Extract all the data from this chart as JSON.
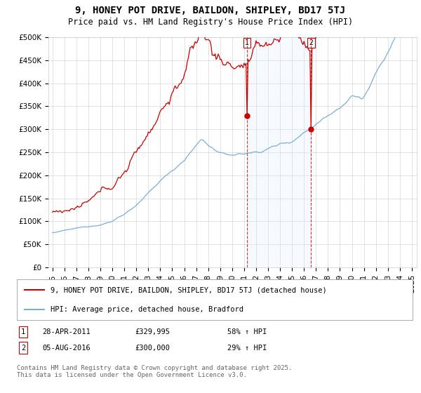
{
  "title": "9, HONEY POT DRIVE, BAILDON, SHIPLEY, BD17 5TJ",
  "subtitle": "Price paid vs. HM Land Registry's House Price Index (HPI)",
  "sale1_date": "28-APR-2011",
  "sale1_price": 329995,
  "sale1_price_str": "£329,995",
  "sale1_pct": "58% ↑ HPI",
  "sale2_date": "05-AUG-2016",
  "sale2_price": 300000,
  "sale2_price_str": "£300,000",
  "sale2_pct": "29% ↑ HPI",
  "legend_label_red": "9, HONEY POT DRIVE, BAILDON, SHIPLEY, BD17 5TJ (detached house)",
  "legend_label_blue": "HPI: Average price, detached house, Bradford",
  "footer": "Contains HM Land Registry data © Crown copyright and database right 2025.\nThis data is licensed under the Open Government Licence v3.0.",
  "red_color": "#cc0000",
  "blue_color": "#7bafd4",
  "shade_color": "#ddeeff",
  "background_color": "#ffffff",
  "grid_color": "#cccccc",
  "title_fontsize": 10,
  "subtitle_fontsize": 8.5,
  "tick_fontsize": 7.5,
  "legend_fontsize": 7.5,
  "footer_fontsize": 6.5
}
